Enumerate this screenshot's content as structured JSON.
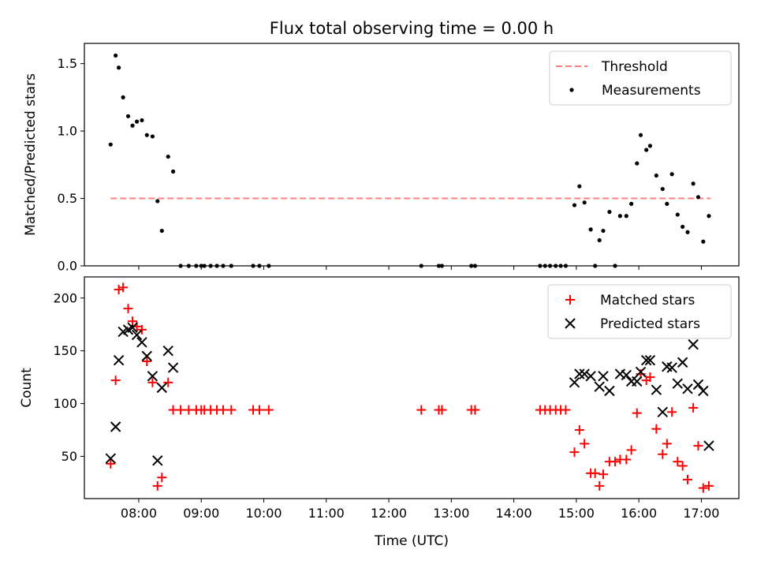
{
  "chart_data": [
    {
      "type": "scatter",
      "title": "Flux total observing time = 0.00 h",
      "xlabel": "",
      "ylabel": "Matched/Predicted stars",
      "xlim": [
        7.13,
        17.6
      ],
      "ylim": [
        0,
        1.65
      ],
      "yticks": [
        0,
        0.5,
        1.0,
        1.5
      ],
      "ytick_labels": [
        "0.0",
        "0.5",
        "1.0",
        "1.5"
      ],
      "xticks": [
        8,
        9,
        10,
        11,
        12,
        13,
        14,
        15,
        16,
        17
      ],
      "legend_position": "upper right",
      "grid": false,
      "threshold": {
        "name": "Threshold",
        "value": 0.5,
        "x_range": [
          7.55,
          17.15
        ],
        "color": "#ff7f7f",
        "style": "dashed"
      },
      "series": [
        {
          "name": "Measurements",
          "color": "#000000",
          "marker": "dot",
          "points": [
            [
              7.55,
              0.9
            ],
            [
              7.63,
              1.56
            ],
            [
              7.68,
              1.47
            ],
            [
              7.75,
              1.25
            ],
            [
              7.83,
              1.11
            ],
            [
              7.9,
              1.04
            ],
            [
              7.97,
              1.07
            ],
            [
              8.05,
              1.08
            ],
            [
              8.13,
              0.97
            ],
            [
              8.22,
              0.96
            ],
            [
              8.3,
              0.48
            ],
            [
              8.37,
              0.26
            ],
            [
              8.47,
              0.81
            ],
            [
              8.55,
              0.7
            ],
            [
              8.67,
              0.0
            ],
            [
              8.8,
              0.0
            ],
            [
              8.92,
              0.0
            ],
            [
              9.0,
              0.0
            ],
            [
              9.05,
              0.0
            ],
            [
              9.15,
              0.0
            ],
            [
              9.25,
              0.0
            ],
            [
              9.35,
              0.0
            ],
            [
              9.48,
              0.0
            ],
            [
              9.83,
              0.0
            ],
            [
              9.93,
              0.0
            ],
            [
              10.08,
              0.0
            ],
            [
              12.52,
              0.0
            ],
            [
              12.8,
              0.0
            ],
            [
              12.85,
              0.0
            ],
            [
              13.32,
              0.0
            ],
            [
              13.38,
              0.0
            ],
            [
              14.42,
              0.0
            ],
            [
              14.5,
              0.0
            ],
            [
              14.58,
              0.0
            ],
            [
              14.67,
              0.0
            ],
            [
              14.75,
              0.0
            ],
            [
              14.83,
              0.0
            ],
            [
              14.97,
              0.45
            ],
            [
              15.05,
              0.59
            ],
            [
              15.13,
              0.47
            ],
            [
              15.23,
              0.27
            ],
            [
              15.3,
              0.0
            ],
            [
              15.37,
              0.19
            ],
            [
              15.43,
              0.26
            ],
            [
              15.53,
              0.4
            ],
            [
              15.62,
              0.0
            ],
            [
              15.7,
              0.37
            ],
            [
              15.8,
              0.37
            ],
            [
              15.88,
              0.46
            ],
            [
              15.97,
              0.76
            ],
            [
              16.03,
              0.97
            ],
            [
              16.12,
              0.86
            ],
            [
              16.18,
              0.89
            ],
            [
              16.28,
              0.67
            ],
            [
              16.38,
              0.57
            ],
            [
              16.45,
              0.46
            ],
            [
              16.53,
              0.68
            ],
            [
              16.62,
              0.38
            ],
            [
              16.7,
              0.29
            ],
            [
              16.78,
              0.25
            ],
            [
              16.87,
              0.61
            ],
            [
              16.95,
              0.51
            ],
            [
              17.03,
              0.18
            ],
            [
              17.12,
              0.37
            ]
          ]
        }
      ]
    },
    {
      "type": "scatter",
      "title": "",
      "xlabel": "Time (UTC)",
      "ylabel": "Count",
      "xlim": [
        7.13,
        17.6
      ],
      "ylim": [
        10,
        220
      ],
      "yticks": [
        50,
        100,
        150,
        200
      ],
      "ytick_labels": [
        "50",
        "100",
        "150",
        "200"
      ],
      "xticks": [
        8,
        9,
        10,
        11,
        12,
        13,
        14,
        15,
        16,
        17
      ],
      "xtick_labels": [
        "08:00",
        "09:00",
        "10:00",
        "11:00",
        "12:00",
        "13:00",
        "14:00",
        "15:00",
        "16:00",
        "17:00"
      ],
      "legend_position": "upper right",
      "grid": false,
      "series": [
        {
          "name": "Matched stars",
          "color": "#ff0000",
          "marker": "plus",
          "points": [
            [
              7.55,
              43
            ],
            [
              7.63,
              122
            ],
            [
              7.68,
              208
            ],
            [
              7.75,
              210
            ],
            [
              7.83,
              190
            ],
            [
              7.9,
              178
            ],
            [
              7.97,
              173
            ],
            [
              8.05,
              170
            ],
            [
              8.13,
              140
            ],
            [
              8.22,
              120
            ],
            [
              8.3,
              22
            ],
            [
              8.37,
              30
            ],
            [
              8.47,
              120
            ],
            [
              8.55,
              94
            ],
            [
              8.67,
              94
            ],
            [
              8.8,
              94
            ],
            [
              8.92,
              94
            ],
            [
              9.0,
              94
            ],
            [
              9.05,
              94
            ],
            [
              9.15,
              94
            ],
            [
              9.25,
              94
            ],
            [
              9.35,
              94
            ],
            [
              9.48,
              94
            ],
            [
              9.83,
              94
            ],
            [
              9.93,
              94
            ],
            [
              10.08,
              94
            ],
            [
              12.52,
              94
            ],
            [
              12.8,
              94
            ],
            [
              12.85,
              94
            ],
            [
              13.32,
              94
            ],
            [
              13.38,
              94
            ],
            [
              14.42,
              94
            ],
            [
              14.5,
              94
            ],
            [
              14.58,
              94
            ],
            [
              14.67,
              94
            ],
            [
              14.75,
              94
            ],
            [
              14.83,
              94
            ],
            [
              14.97,
              54
            ],
            [
              15.05,
              75
            ],
            [
              15.13,
              62
            ],
            [
              15.23,
              34
            ],
            [
              15.3,
              34
            ],
            [
              15.37,
              22
            ],
            [
              15.43,
              33
            ],
            [
              15.53,
              45
            ],
            [
              15.62,
              45
            ],
            [
              15.7,
              47
            ],
            [
              15.8,
              47
            ],
            [
              15.88,
              56
            ],
            [
              15.97,
              91
            ],
            [
              16.03,
              128
            ],
            [
              16.12,
              122
            ],
            [
              16.18,
              125
            ],
            [
              16.28,
              76
            ],
            [
              16.38,
              52
            ],
            [
              16.45,
              62
            ],
            [
              16.53,
              92
            ],
            [
              16.62,
              45
            ],
            [
              16.7,
              41
            ],
            [
              16.78,
              28
            ],
            [
              16.87,
              96
            ],
            [
              16.95,
              60
            ],
            [
              17.03,
              20
            ],
            [
              17.12,
              22
            ]
          ]
        },
        {
          "name": "Predicted stars",
          "color": "#000000",
          "marker": "x",
          "points": [
            [
              7.55,
              48
            ],
            [
              7.63,
              78
            ],
            [
              7.68,
              141
            ],
            [
              7.75,
              168
            ],
            [
              7.83,
              170
            ],
            [
              7.9,
              172
            ],
            [
              7.97,
              165
            ],
            [
              8.05,
              158
            ],
            [
              8.13,
              145
            ],
            [
              8.22,
              126
            ],
            [
              8.3,
              46
            ],
            [
              8.37,
              115
            ],
            [
              8.47,
              150
            ],
            [
              8.55,
              134
            ],
            [
              14.97,
              120
            ],
            [
              15.05,
              128
            ],
            [
              15.13,
              128
            ],
            [
              15.23,
              126
            ],
            [
              15.37,
              116
            ],
            [
              15.43,
              126
            ],
            [
              15.53,
              112
            ],
            [
              15.7,
              128
            ],
            [
              15.8,
              127
            ],
            [
              15.88,
              121
            ],
            [
              15.97,
              121
            ],
            [
              16.03,
              130
            ],
            [
              16.12,
              141
            ],
            [
              16.18,
              141
            ],
            [
              16.28,
              113
            ],
            [
              16.38,
              92
            ],
            [
              16.45,
              135
            ],
            [
              16.53,
              134
            ],
            [
              16.62,
              119
            ],
            [
              16.7,
              139
            ],
            [
              16.78,
              114
            ],
            [
              16.87,
              156
            ],
            [
              16.95,
              118
            ],
            [
              17.03,
              112
            ],
            [
              17.12,
              60
            ]
          ]
        }
      ]
    }
  ]
}
